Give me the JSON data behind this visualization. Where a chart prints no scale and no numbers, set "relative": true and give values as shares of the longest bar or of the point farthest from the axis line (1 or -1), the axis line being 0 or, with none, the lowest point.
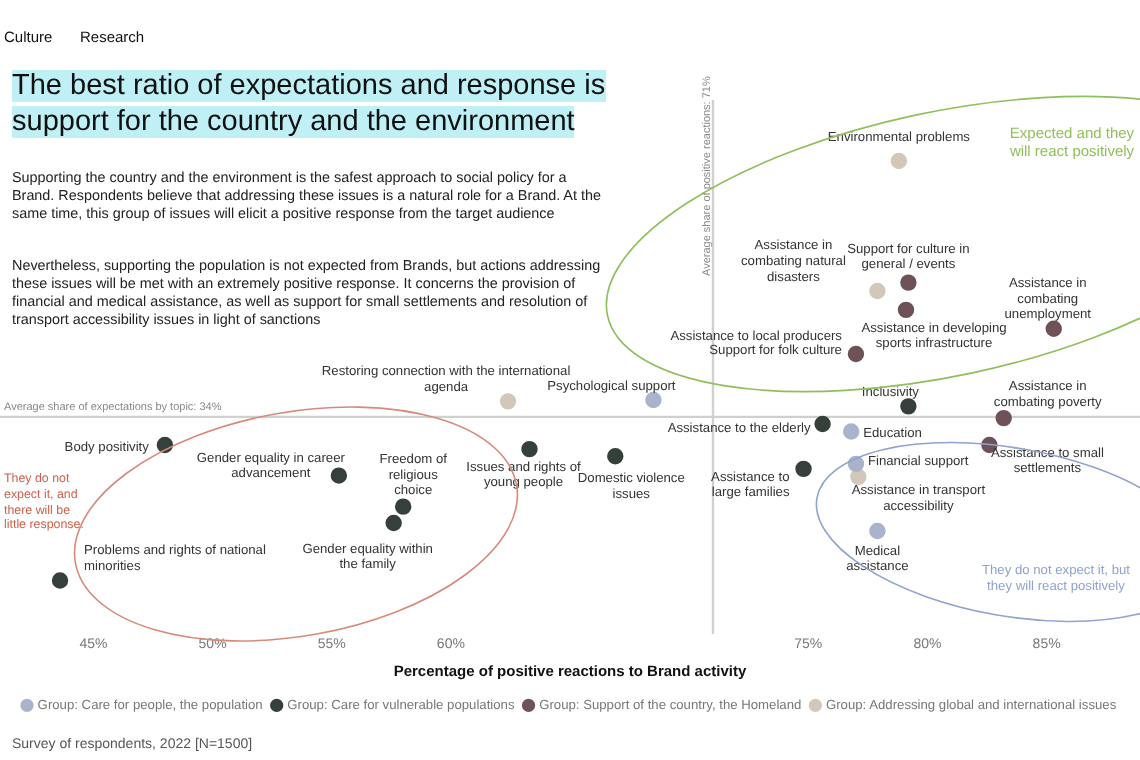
{
  "chart_data": {
    "type": "scatter",
    "title": "The best ratio of expectations and response is support for the country and the environment",
    "xlabel": "Percentage of positive reactions to Brand activity",
    "relative": true,
    "legend": "bottom",
    "marker": "circle",
    "xlim": [
      41.5,
      88.5
    ],
    "xticks": [
      {
        "value": 45,
        "label": "45%"
      },
      {
        "value": 50,
        "label": "50%"
      },
      {
        "value": 55,
        "label": "55%"
      },
      {
        "value": 60,
        "label": "60%"
      },
      {
        "value": 75,
        "label": "75%"
      },
      {
        "value": 80,
        "label": "80%"
      },
      {
        "value": 85,
        "label": "85%"
      }
    ],
    "ref_lines": [
      {
        "axis": "x",
        "value": 71,
        "label": "Average share of positive reactions: 71%",
        "color": "#d0d0d0"
      },
      {
        "axis": "y",
        "value": 0.39,
        "color": "#d0d0d0"
      }
    ],
    "series": [
      {
        "name": "Group: Care for people, the population",
        "color": "#aab3cb",
        "x": [
          68.5,
          76.8,
          77.0,
          77.9
        ],
        "values": [
          0.43,
          0.355,
          0.278,
          0.118
        ]
      },
      {
        "name": "Group: Care for vulnerable populations",
        "color": "#36403b",
        "x": [
          79.2,
          75.6,
          74.8,
          66.9,
          63.3,
          48.0,
          55.3,
          58.0,
          57.6,
          43.6
        ],
        "values": [
          0.415,
          0.373,
          0.266,
          0.296,
          0.313,
          0.323,
          0.25,
          0.176,
          0.137,
          0
        ]
      },
      {
        "name": "Group: Support of the country, the Homeland",
        "color": "#6e5257",
        "x": [
          79.2,
          79.1,
          85.3,
          77.0,
          83.2,
          82.6
        ],
        "values": [
          0.71,
          0.645,
          0.6,
          0.54,
          0.387,
          0.323
        ]
      },
      {
        "name": "Group: Addressing global and international issues",
        "color": "#d3c7ba",
        "x": [
          78.8,
          77.9,
          62.4,
          77.1
        ],
        "values": [
          1,
          0.69,
          0.427,
          0.247
        ]
      }
    ],
    "annotations": [
      "Culture",
      "Research",
      "Supporting the country and the environment is the safest approach to social policy for a Brand. Respondents believe that addressing these issues is a natural role for a Brand. At the same time, this group of issues will elicit a positive response from the target audience",
      "Nevertheless, supporting the population is not expected from Brands, but actions addressing these issues will be met with an extremely positive response. It concerns the provision of financial and medical assistance, as well as support for small settlements and resolution of transport accessibility issues in light of sanctions",
      "Expected and they will react positively",
      "They do not expect it, and there will be little response.",
      "They do not expect it, but they will react positively",
      "Survey of respondents, 2022 [N=1500]",
      "Average share of expectations by topic: 34%",
      {
        "text": "Environmental problems",
        "x": 78.8,
        "y": 1
      },
      {
        "text": "Assistance in combating natural disasters",
        "x": 77.9,
        "y": 0.69
      },
      {
        "text": "Support for culture in general / events",
        "x": 79.2,
        "y": 0.71
      },
      {
        "text": "Assistance in developing sports infrastructure",
        "x": 79.1,
        "y": 0.645
      },
      {
        "text": "Assistance in combating unemployment",
        "x": 85.3,
        "y": 0.6
      },
      {
        "text": "Assistance to local producers",
        "x": 77.0,
        "y": 0.54
      },
      {
        "text": "Support for folk culture",
        "x": 77.0,
        "y": 0.54
      },
      {
        "text": "Restoring connection with the international agenda",
        "x": 62.4,
        "y": 0.427
      },
      {
        "text": "Psychological support",
        "x": 68.5,
        "y": 0.43
      },
      {
        "text": "Inclusivity",
        "x": 79.2,
        "y": 0.415
      },
      {
        "text": "Assistance in combating poverty",
        "x": 83.2,
        "y": 0.387
      },
      {
        "text": "Assistance to the elderly",
        "x": 75.6,
        "y": 0.373
      },
      {
        "text": "Education",
        "x": 76.8,
        "y": 0.355
      },
      {
        "text": "Assistance to small settlements",
        "x": 82.6,
        "y": 0.323
      },
      {
        "text": "Assistance to large families",
        "x": 74.8,
        "y": 0.266
      },
      {
        "text": "Financial support",
        "x": 77.0,
        "y": 0.278
      },
      {
        "text": "Assistance in transport accessibility",
        "x": 77.1,
        "y": 0.247
      },
      {
        "text": "Medical assistance",
        "x": 77.9,
        "y": 0.118
      },
      {
        "text": "Domestic violence issues",
        "x": 66.9,
        "y": 0.296
      },
      {
        "text": "Issues and rights of young people",
        "x": 63.3,
        "y": 0.313
      },
      {
        "text": "Body positivity",
        "x": 48.0,
        "y": 0.323
      },
      {
        "text": "Gender equality in career advancement",
        "x": 55.3,
        "y": 0.25
      },
      {
        "text": "Freedom of religious choice",
        "x": 58.0,
        "y": 0.176
      },
      {
        "text": "Gender equality within the family",
        "x": 57.6,
        "y": 0.137
      },
      {
        "text": "Problems and rights of national minorities",
        "x": 43.6,
        "y": 0
      }
    ]
  }
}
